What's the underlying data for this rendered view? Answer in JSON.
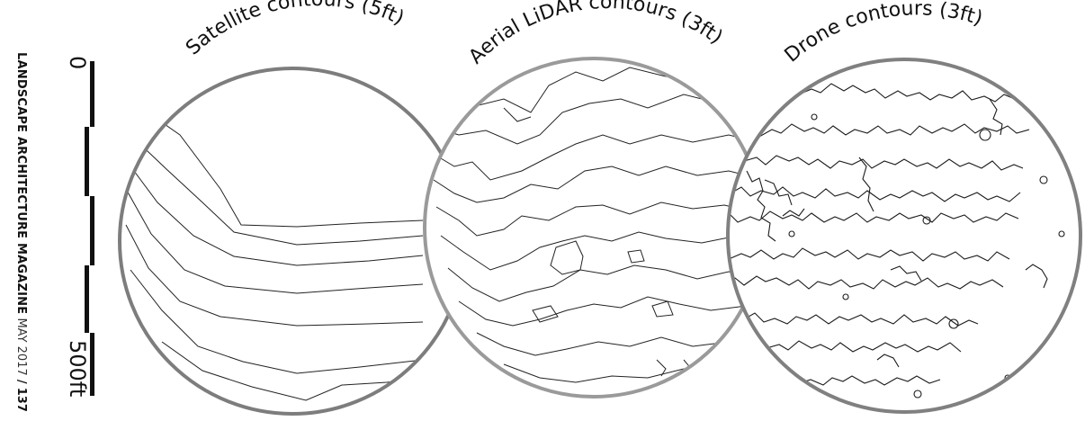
{
  "sidebar": {
    "magazine": "LANDSCAPE ARCHITECTURE MAGAZINE",
    "date": "MAY 2017",
    "separator": "/",
    "page_number": "137"
  },
  "scale_bar": {
    "start_label": "0",
    "end_label": "500ft"
  },
  "panels": [
    {
      "title": "Satellite contours (5ft)"
    },
    {
      "title": "Aerial LiDAR contours (3ft)"
    },
    {
      "title": "Drone contours (3ft)"
    }
  ]
}
